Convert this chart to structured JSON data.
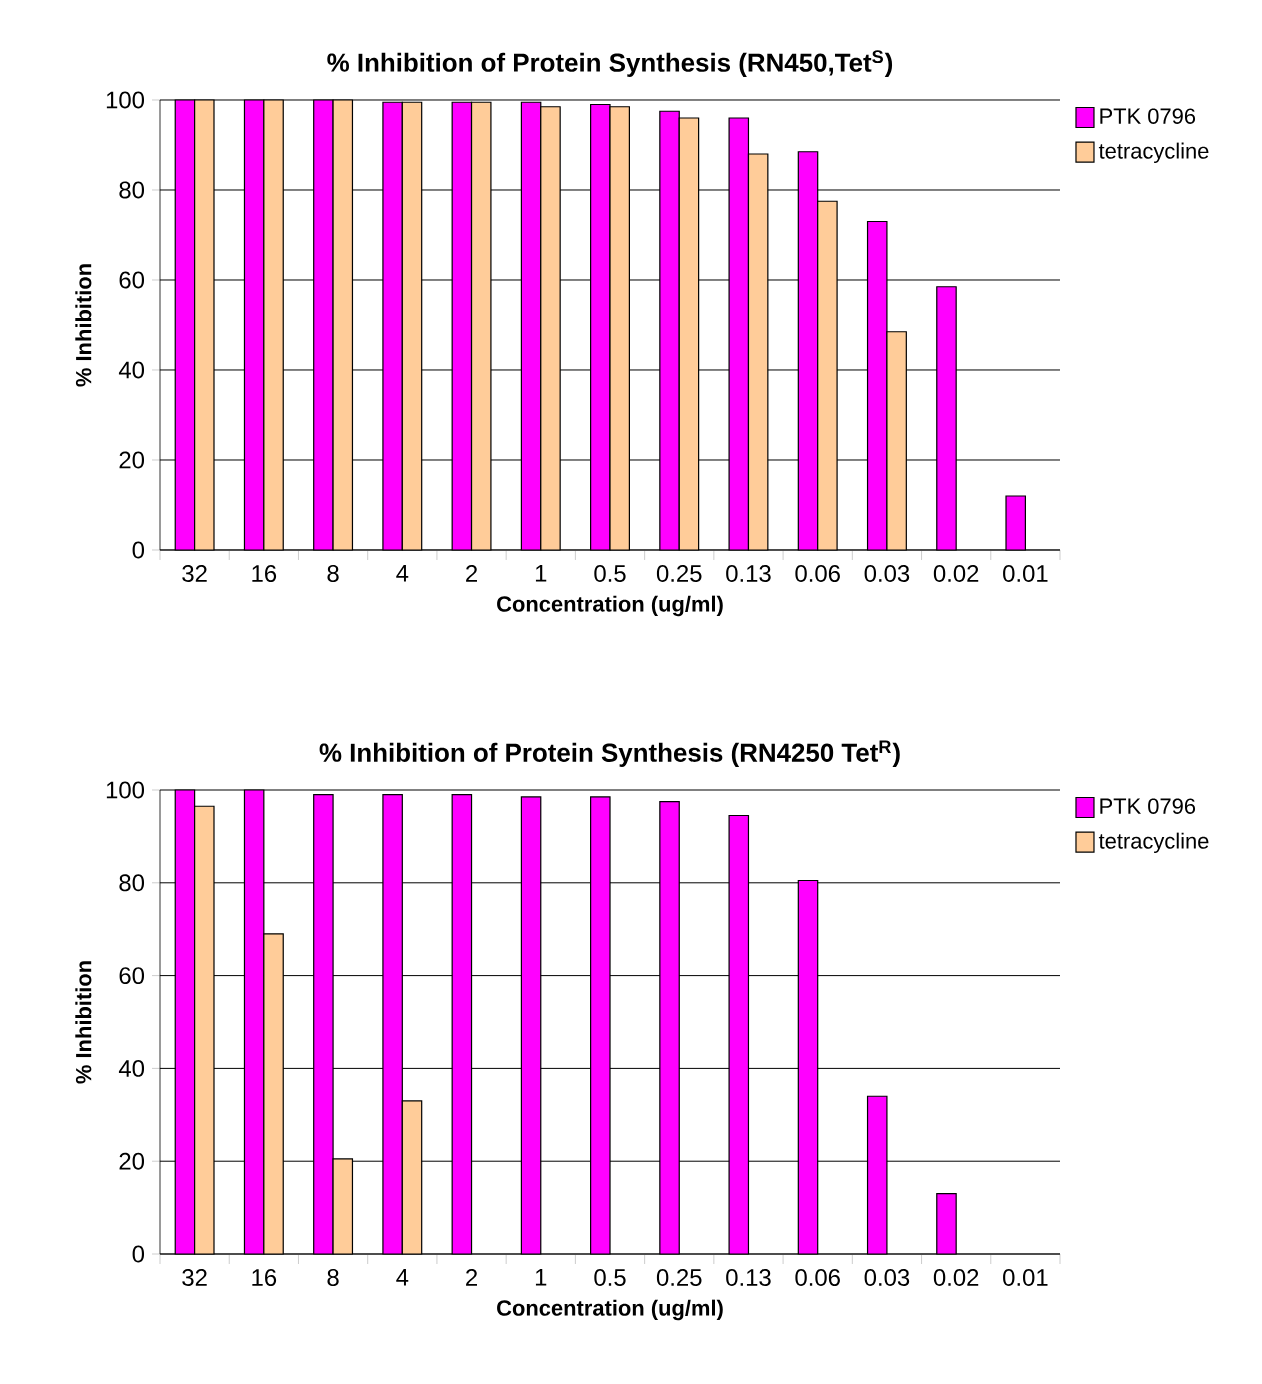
{
  "chart_data": [
    {
      "type": "bar",
      "title": "% Inhibition of Protein Synthesis (RN450,Tet$^{S}$)",
      "xlabel": "Concentration (ug/ml)",
      "ylabel": "% Inhibition",
      "categories": [
        "32",
        "16",
        "8",
        "4",
        "2",
        "1",
        "0.5",
        "0.25",
        "0.13",
        "0.06",
        "0.03",
        "0.02",
        "0.01"
      ],
      "series": [
        {
          "name": "PTK 0796",
          "color": "#ff00ff",
          "values": [
            100,
            100,
            100,
            99.5,
            99.5,
            99.5,
            99,
            97.5,
            96,
            88.5,
            73,
            58.5,
            12
          ]
        },
        {
          "name": "tetracycline",
          "color": "#ffcc99",
          "values": [
            100,
            100,
            100,
            99.5,
            99.5,
            98.5,
            98.5,
            96,
            88,
            77.5,
            48.5,
            null,
            null
          ]
        }
      ],
      "ylim": [
        0,
        100
      ],
      "yticks": [
        0,
        20,
        40,
        60,
        80,
        100
      ],
      "grid": "y",
      "legend": "top right"
    },
    {
      "type": "bar",
      "title": "% Inhibition of Protein Synthesis (RN4250 Tet$^{R}$)",
      "xlabel": "Concentration (ug/ml)",
      "ylabel": "% Inhibition",
      "categories": [
        "32",
        "16",
        "8",
        "4",
        "2",
        "1",
        "0.5",
        "0.25",
        "0.13",
        "0.06",
        "0.03",
        "0.02",
        "0.01"
      ],
      "series": [
        {
          "name": "PTK 0796",
          "color": "#ff00ff",
          "values": [
            100,
            100,
            99,
            99,
            99,
            98.5,
            98.5,
            97.5,
            94.5,
            80.5,
            34,
            13,
            null
          ]
        },
        {
          "name": "tetracycline",
          "color": "#ffcc99",
          "values": [
            96.5,
            69,
            20.5,
            33,
            null,
            null,
            null,
            null,
            null,
            null,
            null,
            null,
            null
          ]
        }
      ],
      "ylim": [
        0,
        100
      ],
      "yticks": [
        0,
        20,
        40,
        60,
        80,
        100
      ],
      "grid": "y",
      "legend": "top right"
    }
  ]
}
